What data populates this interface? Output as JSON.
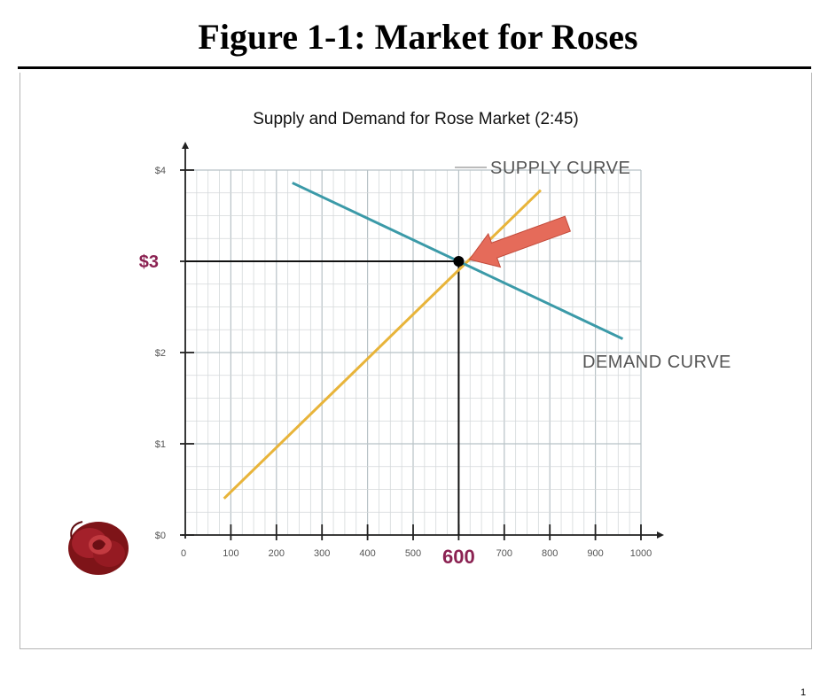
{
  "page": {
    "figure_title": "Figure 1-1: Market for Roses",
    "page_number": "1"
  },
  "chart_data": {
    "type": "line",
    "title": "Supply and Demand for Rose Market (2:45)",
    "xlabel": "",
    "ylabel": "",
    "xlim": [
      0,
      1000
    ],
    "ylim": [
      0,
      4
    ],
    "grid": true,
    "x_ticks": [
      "0",
      "100",
      "200",
      "300",
      "400",
      "500",
      "600",
      "700",
      "800",
      "900",
      "1000"
    ],
    "y_ticks": [
      "$0",
      "$1",
      "$2",
      "$3",
      "$4"
    ],
    "y_tick_values": [
      0,
      1,
      2,
      3,
      4
    ],
    "series": [
      {
        "name": "SUPPLY CURVE",
        "color": "#e8b43a",
        "x": [
          85,
          780
        ],
        "y": [
          0.4,
          3.78
        ]
      },
      {
        "name": "DEMAND CURVE",
        "color": "#3b9aa8",
        "x": [
          235,
          960
        ],
        "y": [
          3.86,
          2.15
        ]
      }
    ],
    "equilibrium": {
      "x": 600,
      "y": 3,
      "x_label": "600",
      "y_label": "$3"
    },
    "highlight_color": "#8b2252",
    "annotations": [
      "SUPPLY CURVE",
      "DEMAND CURVE"
    ]
  }
}
